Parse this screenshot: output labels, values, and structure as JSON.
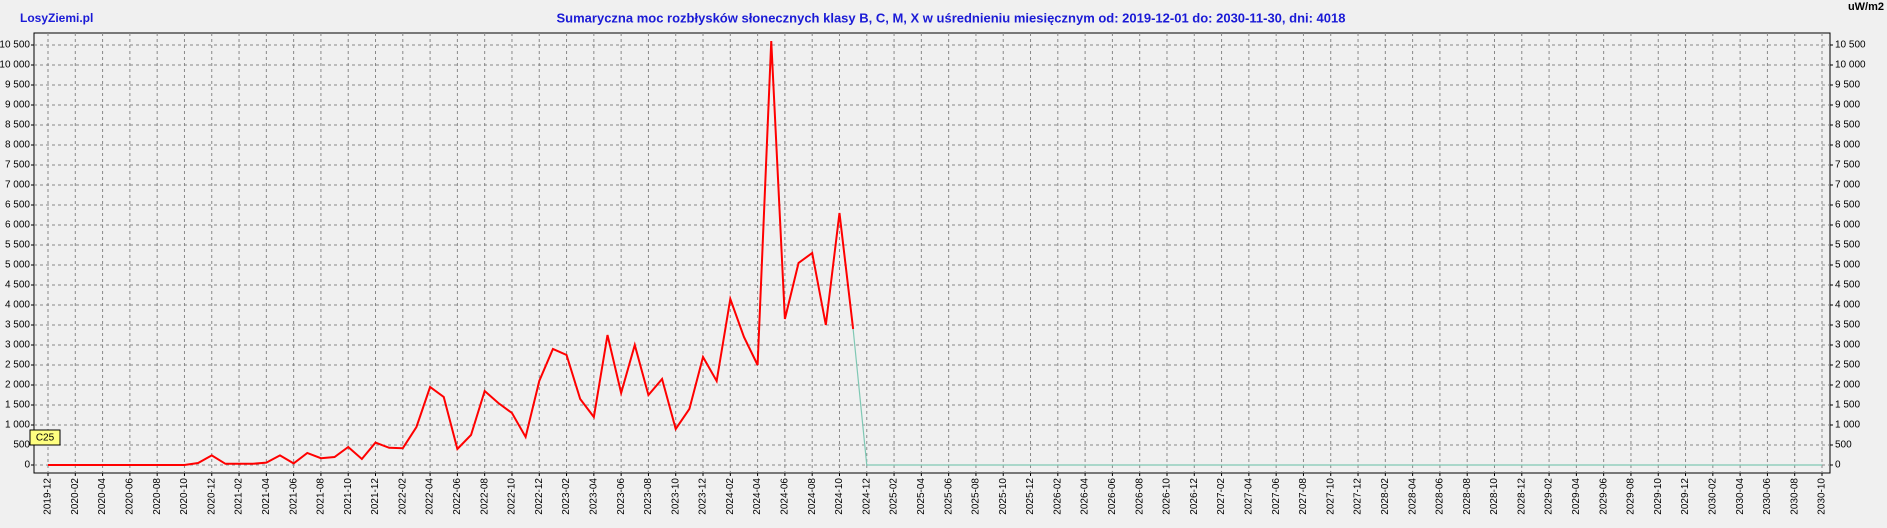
{
  "site": "LosyZiemi.pl",
  "chart_data": {
    "type": "line",
    "title": "Sumaryczna moc rozbłysków słonecznych klasy B, C, M, X w uśrednieniu miesięcznym od: 2019-12-01 do: 2030-11-30, dni: 4018",
    "unit": "uW/m2",
    "annotation": "C25",
    "categories": [
      "2019-12",
      null,
      "2020-02",
      null,
      "2020-04",
      null,
      "2020-06",
      null,
      "2020-08",
      null,
      "2020-10",
      null,
      "2020-12",
      null,
      "2021-02",
      null,
      "2021-04",
      null,
      "2021-06",
      null,
      "2021-08",
      null,
      "2021-10",
      null,
      "2021-12",
      null,
      "2022-02",
      null,
      "2022-04",
      null,
      "2022-06",
      null,
      "2022-08",
      null,
      "2022-10",
      null,
      "2022-12",
      null,
      "2023-02",
      null,
      "2023-04",
      null,
      "2023-06",
      null,
      "2023-08",
      null,
      "2023-10",
      null,
      "2023-12",
      null,
      "2024-02",
      null,
      "2024-04",
      null,
      "2024-06",
      null,
      "2024-08",
      null,
      "2024-10",
      null,
      "2024-12",
      null,
      "2025-02",
      null,
      "2025-04",
      null,
      "2025-06",
      null,
      "2025-08",
      null,
      "2025-10",
      null,
      "2025-12",
      null,
      "2026-02",
      null,
      "2026-04",
      null,
      "2026-06",
      null,
      "2026-08",
      null,
      "2026-10",
      null,
      "2026-12",
      null,
      "2027-02",
      null,
      "2027-04",
      null,
      "2027-06",
      null,
      "2027-08",
      null,
      "2027-10",
      null,
      "2027-12",
      null,
      "2028-02",
      null,
      "2028-04",
      null,
      "2028-06",
      null,
      "2028-08",
      null,
      "2028-10",
      null,
      "2028-12",
      null,
      "2029-02",
      null,
      "2029-04",
      null,
      "2029-06",
      null,
      "2029-08",
      null,
      "2029-10",
      null,
      "2029-12",
      null,
      "2030-02",
      null,
      "2030-04",
      null,
      "2030-06",
      null,
      "2030-08",
      null,
      "2030-10"
    ],
    "series": [
      {
        "color": "#ff0000",
        "values": [
          0,
          0,
          0,
          0,
          0,
          0,
          0,
          0,
          0,
          0,
          0,
          50,
          240,
          30,
          30,
          30,
          60,
          240,
          40,
          300,
          170,
          200,
          450,
          150,
          560,
          430,
          420,
          950,
          1950,
          1700,
          400,
          750,
          1850,
          1550,
          1300,
          700,
          2100,
          2900,
          2750,
          1650,
          1200,
          3250,
          1800,
          3000,
          1750,
          2150,
          900,
          1400,
          2700,
          2100,
          4150,
          3200,
          2500,
          10600,
          3650,
          5050,
          5300,
          3500,
          6300,
          3400,
          null,
          null,
          null,
          null,
          null,
          null,
          null,
          null,
          null,
          null,
          null,
          null,
          null,
          null,
          null,
          null,
          null,
          null,
          null,
          null,
          null,
          null,
          null,
          null,
          null,
          null,
          null,
          null,
          null,
          null,
          null,
          null,
          null,
          null,
          null,
          null,
          null,
          null,
          null,
          null,
          null,
          null,
          null,
          null,
          null,
          null,
          null,
          null,
          null,
          null,
          null,
          null,
          null,
          null,
          null,
          null,
          null,
          null,
          null,
          null,
          null,
          null,
          null,
          null,
          null,
          null,
          null,
          null,
          null,
          null,
          null
        ]
      },
      {
        "color": "#7fc8b4",
        "values": [
          null,
          null,
          null,
          null,
          null,
          null,
          null,
          null,
          null,
          null,
          null,
          null,
          null,
          null,
          null,
          null,
          null,
          null,
          null,
          null,
          null,
          null,
          null,
          null,
          null,
          null,
          null,
          null,
          null,
          null,
          null,
          null,
          null,
          null,
          null,
          null,
          null,
          null,
          null,
          null,
          null,
          null,
          null,
          null,
          null,
          null,
          null,
          null,
          null,
          null,
          null,
          null,
          null,
          null,
          null,
          null,
          null,
          null,
          null,
          3400,
          0,
          0,
          0,
          0,
          0,
          0,
          0,
          0,
          0,
          0,
          0,
          0,
          0,
          0,
          0,
          0,
          0,
          0,
          0,
          0,
          0,
          0,
          0,
          0,
          0,
          0,
          0,
          0,
          0,
          0,
          0,
          0,
          0,
          0,
          0,
          0,
          0,
          0,
          0,
          0,
          0,
          0,
          0,
          0,
          0,
          0,
          0,
          0,
          0,
          0,
          0,
          0,
          0,
          0,
          0,
          0,
          0,
          0,
          0,
          0,
          0,
          0,
          0,
          0,
          0,
          0,
          0,
          0,
          0,
          0,
          0
        ]
      }
    ],
    "ylim": [
      -200,
      10800
    ],
    "yticks": [
      0,
      500,
      {
        "value": 1000,
        "label": "1 000"
      },
      {
        "value": 1500,
        "label": "1 500"
      },
      {
        "value": 2000,
        "label": "2 000"
      },
      {
        "value": 2500,
        "label": "2 500"
      },
      {
        "value": 3000,
        "label": "3 000"
      },
      {
        "value": 3500,
        "label": "3 500"
      },
      {
        "value": 4000,
        "label": "4 000"
      },
      {
        "value": 4500,
        "label": "4 500"
      },
      {
        "value": 5000,
        "label": "5 000"
      },
      {
        "value": 5500,
        "label": "5 500"
      },
      {
        "value": 6000,
        "label": "6 000"
      },
      {
        "value": 6500,
        "label": "6 500"
      },
      {
        "value": 7000,
        "label": "7 000"
      },
      {
        "value": 7500,
        "label": "7 500"
      },
      {
        "value": 8000,
        "label": "8 000"
      },
      {
        "value": 8500,
        "label": "8 500"
      },
      {
        "value": 9000,
        "label": "9 000"
      },
      {
        "value": 9500,
        "label": "9 500"
      },
      {
        "value": 10000,
        "label": "10 000"
      },
      {
        "value": 10500,
        "label": "10 500"
      }
    ],
    "grid": true
  }
}
